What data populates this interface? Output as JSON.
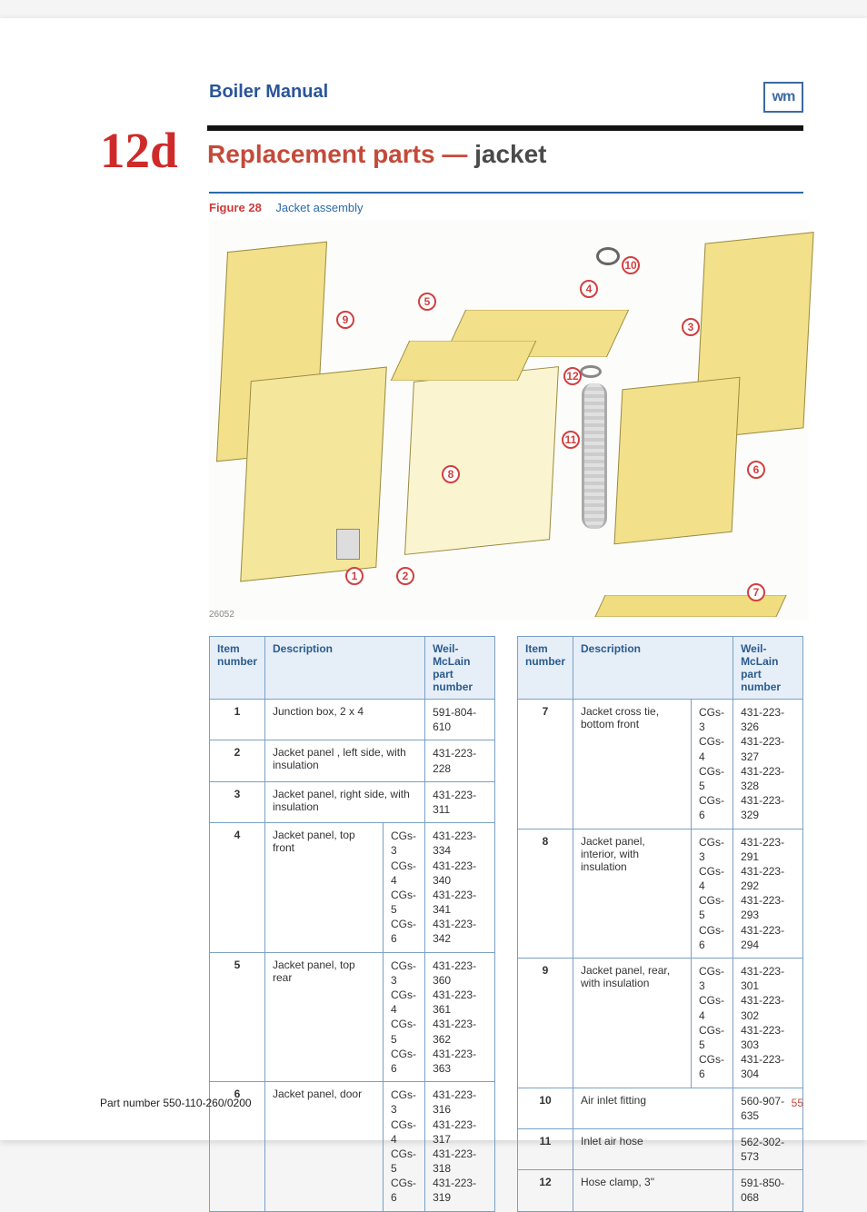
{
  "header": {
    "manual_title": "Boiler Manual",
    "logo_text": "wm"
  },
  "section": {
    "number": "12d",
    "title_prefix": "Replacement parts",
    "dash": "—",
    "title_suffix": "jacket"
  },
  "figure": {
    "label": "Figure 28",
    "caption": "Jacket assembly",
    "diagram_id": "26052"
  },
  "callouts": [
    "1",
    "2",
    "3",
    "4",
    "5",
    "6",
    "7",
    "8",
    "9",
    "10",
    "11",
    "12"
  ],
  "table_headers": {
    "item": "Item number",
    "desc": "Description",
    "part": "Weil-McLain part number"
  },
  "table_left": [
    {
      "item": "1",
      "desc": "Junction box, 2 x 4",
      "models": [],
      "parts": [
        "591-804-610"
      ]
    },
    {
      "item": "2",
      "desc": "Jacket panel , left side, with insulation",
      "models": [],
      "parts": [
        "431-223-228"
      ]
    },
    {
      "item": "3",
      "desc": "Jacket panel, right side, with insulation",
      "models": [],
      "parts": [
        "431-223-311"
      ]
    },
    {
      "item": "4",
      "desc": "Jacket panel, top front",
      "models": [
        "CGs-3",
        "CGs-4",
        "CGs-5",
        "CGs-6"
      ],
      "parts": [
        "431-223-334",
        "431-223-340",
        "431-223-341",
        "431-223-342"
      ]
    },
    {
      "item": "5",
      "desc": "Jacket panel, top rear",
      "models": [
        "CGs-3",
        "CGs-4",
        "CGs-5",
        "CGs-6"
      ],
      "parts": [
        "431-223-360",
        "431-223-361",
        "431-223-362",
        "431-223-363"
      ]
    },
    {
      "item": "6",
      "desc": "Jacket panel, door",
      "models": [
        "CGs-3",
        "CGs-4",
        "CGs-5",
        "CGs-6"
      ],
      "parts": [
        "431-223-316",
        "431-223-317",
        "431-223-318",
        "431-223-319"
      ]
    }
  ],
  "table_right": [
    {
      "item": "7",
      "desc": "Jacket cross tie, bottom front",
      "models": [
        "CGs-3",
        "CGs-4",
        "CGs-5",
        "CGs-6"
      ],
      "parts": [
        "431-223-326",
        "431-223-327",
        "431-223-328",
        "431-223-329"
      ]
    },
    {
      "item": "8",
      "desc": "Jacket panel, interior, with insulation",
      "models": [
        "CGs-3",
        "CGs-4",
        "CGs-5",
        "CGs-6"
      ],
      "parts": [
        "431-223-291",
        "431-223-292",
        "431-223-293",
        "431-223-294"
      ]
    },
    {
      "item": "9",
      "desc": "Jacket panel, rear, with insulation",
      "models": [
        "CGs-3",
        "CGs-4",
        "CGs-5",
        "CGs-6"
      ],
      "parts": [
        "431-223-301",
        "431-223-302",
        "431-223-303",
        "431-223-304"
      ]
    },
    {
      "item": "10",
      "desc": "Air inlet fitting",
      "models": [],
      "parts": [
        "560-907-635"
      ]
    },
    {
      "item": "11",
      "desc": "Inlet air hose",
      "models": [],
      "parts": [
        "562-302-573"
      ]
    },
    {
      "item": "12",
      "desc": "Hose clamp, 3\"",
      "models": [],
      "parts": [
        "591-850-068"
      ]
    }
  ],
  "footer": {
    "part_number": "Part number 550-110-260/0200",
    "page": "55"
  },
  "colors": {
    "blue": "#2b6aa8",
    "red": "#cf2a2a",
    "rust": "#c44a3a",
    "panel": "#f2e08a",
    "border": "#7aa0c5"
  }
}
